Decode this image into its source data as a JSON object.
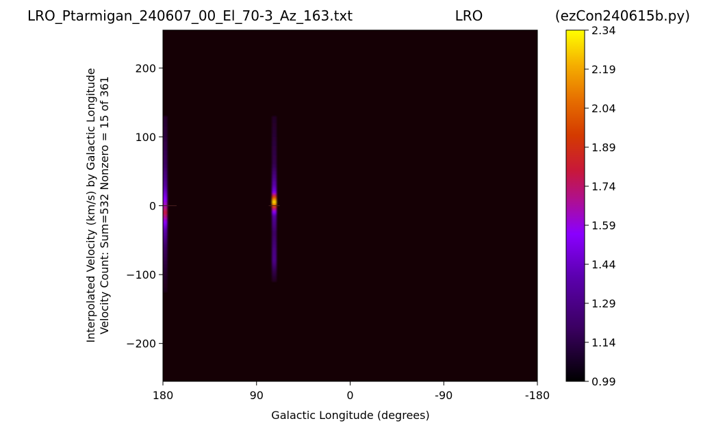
{
  "chart_data": {
    "type": "heatmap",
    "title_left": "LRO_Ptarmigan_240607_00_El_70-3_Az_163.txt",
    "title_center": "LRO",
    "title_right": "(ezCon240615b.py)",
    "xlabel": "Galactic Longitude (degrees)",
    "ylabel_line1": "Interpolated Velocity (km/s) by Galactic Longitude",
    "ylabel_line2": "Velocity Count: Sum=532 Nonzero = 15 of 361",
    "xlim": [
      180,
      -180
    ],
    "ylim": [
      -255,
      255
    ],
    "x_ticks": [
      {
        "value": 180,
        "label": "180"
      },
      {
        "value": 90,
        "label": "90"
      },
      {
        "value": 0,
        "label": "0"
      },
      {
        "value": -90,
        "label": "-90"
      },
      {
        "value": -180,
        "label": "-180"
      }
    ],
    "y_ticks": [
      {
        "value": 200,
        "label": "200"
      },
      {
        "value": 100,
        "label": "100"
      },
      {
        "value": 0,
        "label": "0"
      },
      {
        "value": -100,
        "label": "−100"
      },
      {
        "value": -200,
        "label": "−200"
      }
    ],
    "colorbar": {
      "min": 0.99,
      "max": 2.34,
      "colormap": "gnuplot",
      "ticks": [
        "0.99",
        "1.14",
        "1.29",
        "1.44",
        "1.59",
        "1.74",
        "1.89",
        "2.04",
        "2.19",
        "2.34"
      ]
    },
    "background_value": 0.99,
    "columns": [
      {
        "longitude": 178,
        "profile": [
          {
            "v": 130,
            "value": 1.08
          },
          {
            "v": 100,
            "value": 1.12
          },
          {
            "v": 60,
            "value": 1.2
          },
          {
            "v": 30,
            "value": 1.35
          },
          {
            "v": 15,
            "value": 1.5
          },
          {
            "v": 0,
            "value": 1.65
          },
          {
            "v": -10,
            "value": 1.8
          },
          {
            "v": -20,
            "value": 1.62
          },
          {
            "v": -35,
            "value": 1.4
          },
          {
            "v": -60,
            "value": 1.2
          },
          {
            "v": -90,
            "value": 1.1
          },
          {
            "v": -125,
            "value": 1.03
          }
        ]
      },
      {
        "longitude": 73,
        "profile": [
          {
            "v": 130,
            "value": 1.06
          },
          {
            "v": 100,
            "value": 1.1
          },
          {
            "v": 60,
            "value": 1.15
          },
          {
            "v": 30,
            "value": 1.38
          },
          {
            "v": 20,
            "value": 1.5
          },
          {
            "v": 10,
            "value": 2.1
          },
          {
            "v": 5,
            "value": 2.3
          },
          {
            "v": 0,
            "value": 2.0
          },
          {
            "v": -5,
            "value": 1.7
          },
          {
            "v": -15,
            "value": 1.35
          },
          {
            "v": -40,
            "value": 1.2
          },
          {
            "v": -65,
            "value": 1.28
          },
          {
            "v": -80,
            "value": 1.3
          },
          {
            "v": -95,
            "value": 1.15
          },
          {
            "v": -110,
            "value": 1.05
          }
        ]
      }
    ]
  }
}
